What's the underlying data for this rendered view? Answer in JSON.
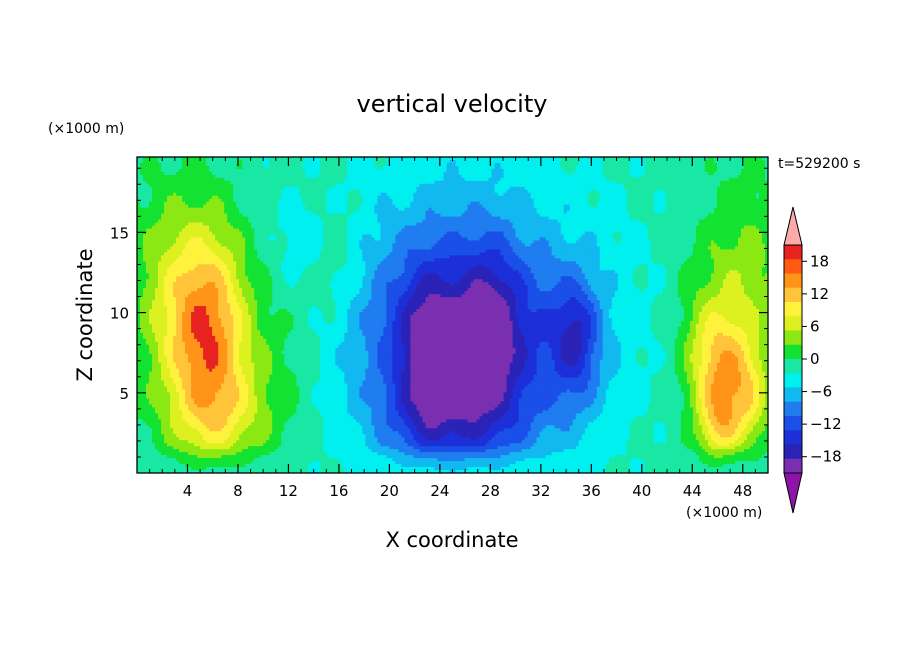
{
  "chart_data": {
    "type": "heatmap",
    "title": "vertical velocity",
    "xlabel": "X coordinate",
    "ylabel": "Z coordinate",
    "x_unit": "(×1000 m)",
    "y_unit": "(×1000 m)",
    "time_label": "t=529200 s",
    "xlim": [
      0,
      50
    ],
    "ylim": [
      0,
      19.7
    ],
    "x_ticks": [
      4,
      8,
      12,
      16,
      20,
      24,
      28,
      32,
      36,
      40,
      44,
      48
    ],
    "y_ticks": [
      5,
      10,
      15
    ],
    "grid": false,
    "colorbar": {
      "labels": [
        "18",
        "12",
        "6",
        "0",
        "−6",
        "−12",
        "−18"
      ],
      "label_values": [
        18,
        12,
        6,
        0,
        -6,
        -12,
        -18
      ],
      "levels": [
        -21,
        -18,
        -15,
        -12,
        -9,
        -6,
        -3,
        0,
        3,
        6,
        9,
        12,
        15,
        18,
        21
      ],
      "colors": [
        "#7a2fb0",
        "#2b22b6",
        "#1d2fd8",
        "#1a4fe8",
        "#1f7df0",
        "#12b8f0",
        "#00f0f0",
        "#19e8a4",
        "#13e232",
        "#8ce812",
        "#ddf020",
        "#fff23c",
        "#ffc43a",
        "#ff9418",
        "#ff5a10",
        "#e8221e"
      ],
      "extend_low_color": "#8e13a8",
      "extend_high_color": "#ffaaaa"
    },
    "features": [
      {
        "x": 5.6,
        "z": 8.8,
        "amp": 19,
        "sx": 2.3,
        "sz": 4.6
      },
      {
        "x": 7.0,
        "z": 3.5,
        "amp": 6,
        "sx": 3.0,
        "sz": 2.2
      },
      {
        "x": 2.2,
        "z": 11.5,
        "amp": 5,
        "sx": 2.2,
        "sz": 4.5
      },
      {
        "x": 13.5,
        "z": 14.5,
        "amp": -3,
        "sx": 1.6,
        "sz": 1.6
      },
      {
        "x": 15.5,
        "z": 13.5,
        "amp": 4,
        "sx": 1.5,
        "sz": 2.5
      },
      {
        "x": 11.5,
        "z": 7.0,
        "amp": 3,
        "sx": 2.5,
        "sz": 3.5
      },
      {
        "x": 25.5,
        "z": 8.0,
        "amp": -15,
        "sx": 4.5,
        "sz": 4.6
      },
      {
        "x": 22.8,
        "z": 7.2,
        "amp": -6,
        "sx": 1.4,
        "sz": 3.5
      },
      {
        "x": 28.2,
        "z": 9.0,
        "amp": -6,
        "sx": 1.4,
        "sz": 3.6
      },
      {
        "x": 25.0,
        "z": 3.0,
        "amp": -6,
        "sx": 4.0,
        "sz": 2.0
      },
      {
        "x": 26.0,
        "z": 10.0,
        "amp": -6,
        "sx": 9.0,
        "sz": 7.5
      },
      {
        "x": 34.8,
        "z": 8.5,
        "amp": -9,
        "sx": 1.2,
        "sz": 2.4
      },
      {
        "x": 34.0,
        "z": 7.5,
        "amp": -4,
        "sx": 3.0,
        "sz": 4.0
      },
      {
        "x": 46.0,
        "z": 6.5,
        "amp": 11,
        "sx": 1.5,
        "sz": 2.5
      },
      {
        "x": 46.0,
        "z": 2.8,
        "amp": 9,
        "sx": 1.1,
        "sz": 1.6
      },
      {
        "x": 48.3,
        "z": 4.6,
        "amp": 9,
        "sx": 1.3,
        "sz": 2.3
      },
      {
        "x": 48.0,
        "z": 11.0,
        "amp": 7,
        "sx": 2.2,
        "sz": 4.8
      },
      {
        "x": 44.5,
        "z": 9.0,
        "amp": 3,
        "sx": 1.5,
        "sz": 4.0
      }
    ]
  }
}
